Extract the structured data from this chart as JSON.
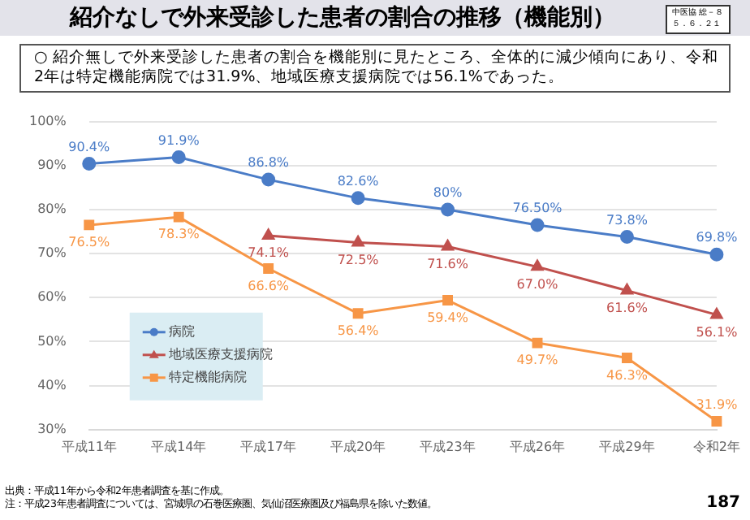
{
  "chart_data": {
    "type": "line",
    "title": "紹介なしで外来受診した患者の割合の推移（機能別）",
    "subtitle": "○ 紹介無しで外来受診した患者の割合を機能別に見たところ、全体的に減少傾向にあり、令和2年は特定機能病院では31.9%、地域医療支援病院では56.1%であった。",
    "categories": [
      "平成11年",
      "平成14年",
      "平成17年",
      "平成20年",
      "平成23年",
      "平成26年",
      "平成29年",
      "令和2年"
    ],
    "series": [
      {
        "name": "病院",
        "color": "#4a7cc7",
        "marker": "circle",
        "values": [
          90.4,
          91.9,
          86.8,
          82.6,
          80,
          76.5,
          73.8,
          69.8
        ],
        "value_labels": [
          "90.4%",
          "91.9%",
          "86.8%",
          "82.6%",
          "80%",
          "76.50%",
          "73.8%",
          "69.8%"
        ]
      },
      {
        "name": "地域医療支援病院",
        "color": "#c0504d",
        "marker": "triangle",
        "values": [
          null,
          null,
          74.1,
          72.5,
          71.6,
          67.0,
          61.6,
          56.1
        ],
        "value_labels": [
          null,
          null,
          "74.1%",
          "72.5%",
          "71.6%",
          "67.0%",
          "61.6%",
          "56.1%"
        ]
      },
      {
        "name": "特定機能病院",
        "color": "#f79646",
        "marker": "square",
        "values": [
          76.5,
          78.3,
          66.6,
          56.4,
          59.4,
          49.7,
          46.3,
          31.9
        ],
        "value_labels": [
          "76.5%",
          "78.3%",
          "66.6%",
          "56.4%",
          "59.4%",
          "49.7%",
          "46.3%",
          "31.9%"
        ]
      }
    ],
    "ylim": [
      30,
      100
    ],
    "yticks": [
      {
        "value": 30,
        "label": "30%"
      },
      {
        "value": 40,
        "label": "40%"
      },
      {
        "value": 50,
        "label": "50%"
      },
      {
        "value": 60,
        "label": "60%"
      },
      {
        "value": 70,
        "label": "70%"
      },
      {
        "value": 80,
        "label": "80%"
      },
      {
        "value": 90,
        "label": "90%"
      },
      {
        "value": 100,
        "label": "100%"
      }
    ],
    "grid": "y",
    "legend": "bottom left",
    "annotations": [
      "中医協 総－８",
      "５．６．２１",
      "出典：平成11年から令和2年患者調査を基に作成。",
      "注：平成23年患者調査については、宮城県の石巻医療圏、気仙沼医療圏及び福島県を除いた数値。",
      "187"
    ]
  }
}
